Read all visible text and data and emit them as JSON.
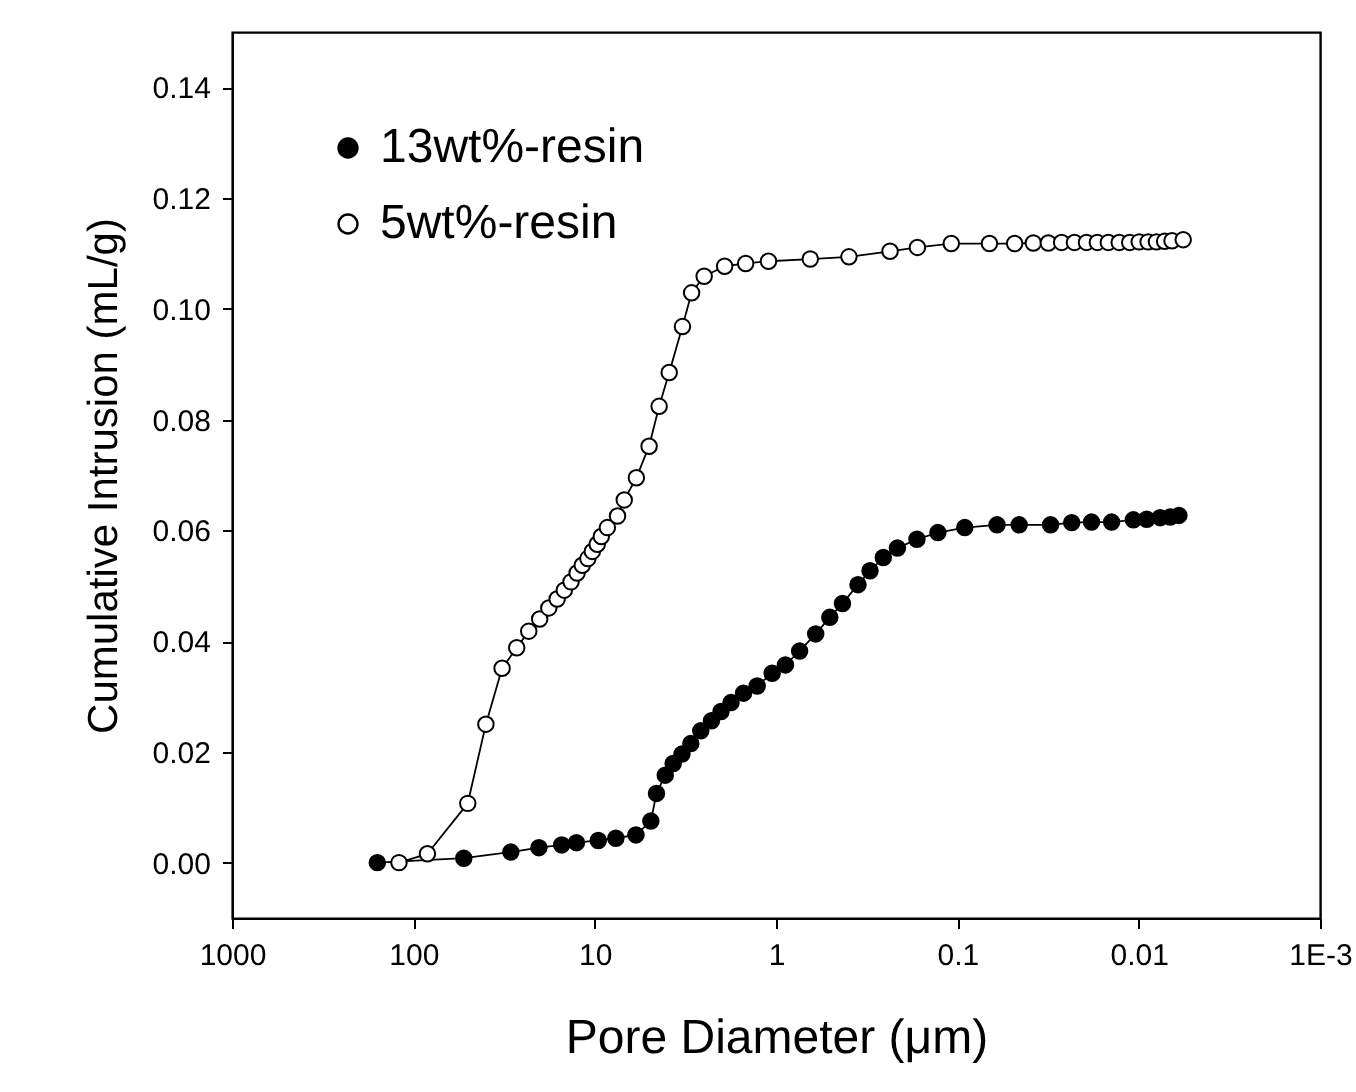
{
  "chart_data": {
    "type": "line",
    "xlabel": "Pore Diameter (μm)",
    "ylabel": "Cumulative Intrusion (mL/g)",
    "log": "x",
    "xlim": [
      1000,
      0.001
    ],
    "xticks": [
      1000,
      100,
      10,
      1,
      0.1,
      0.01,
      {
        "value": 0.001,
        "label": "1E-3"
      }
    ],
    "ylim": [
      -0.01,
      0.15
    ],
    "yticks": [
      {
        "value": 0,
        "label": "0.00"
      },
      {
        "value": 0.02,
        "label": "0.02"
      },
      {
        "value": 0.04,
        "label": "0.04"
      },
      {
        "value": 0.06,
        "label": "0.06"
      },
      {
        "value": 0.08,
        "label": "0.08"
      },
      {
        "value": 0.1,
        "label": "0.10"
      },
      {
        "value": 0.12,
        "label": "0.12"
      },
      {
        "value": 0.14,
        "label": "0.14"
      }
    ],
    "grid": false,
    "legend": "top left",
    "marker": "circle",
    "line_style": "solid",
    "series": [
      {
        "name": "13wt%-resin",
        "color": "#000000",
        "x": [
          158,
          52.7,
          29.0,
          20.3,
          15.2,
          12.6,
          9.55,
          7.64,
          5.92,
          4.9,
          4.56,
          4.08,
          3.69,
          3.3,
          2.95,
          2.6,
          2.27,
          2.01,
          1.77,
          1.51,
          1.27,
          1.05,
          0.887,
          0.741,
          0.604,
          0.505,
          0.43,
          0.353,
          0.303,
          0.256,
          0.214,
          0.167,
          0.128,
          0.091,
          0.0604,
          0.0456,
          0.0306,
          0.0234,
          0.0182,
          0.0141,
          0.0107,
          0.00903,
          0.00761,
          0.0067,
          0.006
        ],
        "values": [
          0,
          0.0008,
          0.0019,
          0.0027,
          0.0032,
          0.0036,
          0.004,
          0.0044,
          0.005,
          0.0075,
          0.0125,
          0.0158,
          0.0179,
          0.0196,
          0.0215,
          0.0238,
          0.0256,
          0.0273,
          0.0289,
          0.0306,
          0.0319,
          0.0342,
          0.0357,
          0.0382,
          0.0413,
          0.0443,
          0.0468,
          0.0502,
          0.0527,
          0.0551,
          0.0568,
          0.0584,
          0.0596,
          0.0605,
          0.061,
          0.061,
          0.061,
          0.0614,
          0.0615,
          0.0615,
          0.0619,
          0.062,
          0.0623,
          0.0624,
          0.0627
        ]
      },
      {
        "name": "5wt%-resin",
        "color": "#000000",
        "x": [
          120,
          83.6,
          50.1,
          39.8,
          32.4,
          26.9,
          23.1,
          20.1,
          17.9,
          16.1,
          14.7,
          13.5,
          12.5,
          11.7,
          10.9,
          10.3,
          9.68,
          9.19,
          8.51,
          7.48,
          6.87,
          5.89,
          5.01,
          4.41,
          3.88,
          3.28,
          2.92,
          2.49,
          1.92,
          1.47,
          1.1,
          0.647,
          0.396,
          0.235,
          0.166,
          0.108,
          0.0665,
          0.0483,
          0.0381,
          0.0315,
          0.0266,
          0.0226,
          0.0194,
          0.0169,
          0.0147,
          0.0128,
          0.0112,
          0.00993,
          0.00887,
          0.00798,
          0.00719,
          0.00655,
          0.00568
        ],
        "values": [
          0,
          0.0016,
          0.0107,
          0.025,
          0.0351,
          0.0388,
          0.0418,
          0.044,
          0.046,
          0.0476,
          0.0492,
          0.0507,
          0.0523,
          0.0537,
          0.0549,
          0.0562,
          0.0575,
          0.0589,
          0.0605,
          0.0626,
          0.0655,
          0.0695,
          0.0752,
          0.0824,
          0.0885,
          0.0968,
          0.1029,
          0.1059,
          0.1077,
          0.1082,
          0.1086,
          0.109,
          0.1094,
          0.1104,
          0.1111,
          0.1118,
          0.1118,
          0.1118,
          0.1119,
          0.1119,
          0.112,
          0.112,
          0.112,
          0.112,
          0.112,
          0.112,
          0.112,
          0.1121,
          0.1121,
          0.1121,
          0.1122,
          0.1123,
          0.1125
        ]
      }
    ]
  }
}
